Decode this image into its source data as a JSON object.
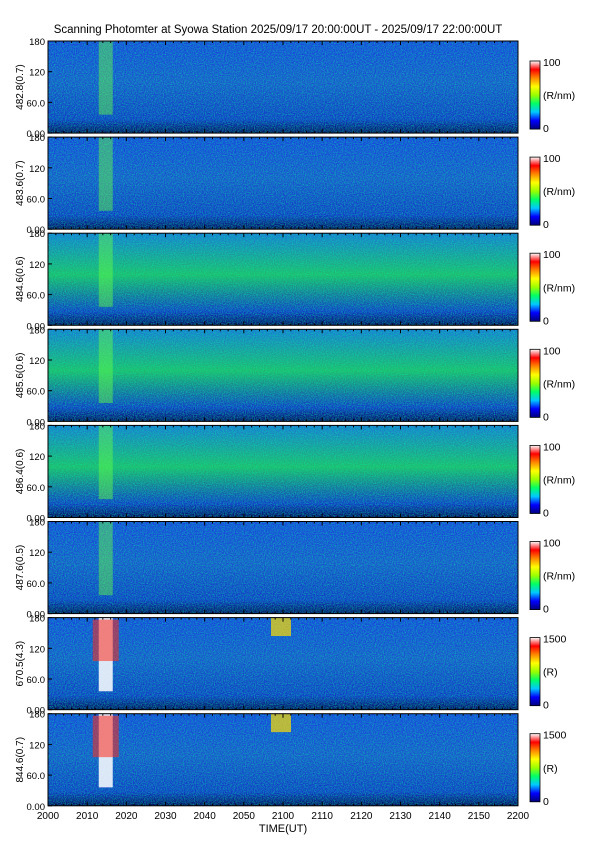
{
  "chart_data": {
    "type": "heatmap",
    "title": "Scanning Photomter at Syowa Station 2025/09/17 20:00:00UT - 2025/09/17 22:00:00UT",
    "xlabel": "TIME(UT)",
    "x_ticks": [
      "2000",
      "2010",
      "2020",
      "2030",
      "2040",
      "2050",
      "2100",
      "2110",
      "2120",
      "2130",
      "2140",
      "2150",
      "2200"
    ],
    "xlim": [
      "2000",
      "2200"
    ],
    "y_ticks": [
      "0.00",
      "60.0",
      "120",
      "180"
    ],
    "ylim": [
      0,
      180
    ],
    "colorscale": [
      "#00007a",
      "#0000ff",
      "#00c8ff",
      "#00ff66",
      "#9bff00",
      "#ffff00",
      "#ff8800",
      "#ff0000",
      "#ffffff"
    ],
    "panels": [
      {
        "ylabel": "482.8(0.7)",
        "cbar_max": "100",
        "cbar_min": "0",
        "cbar_unit": "(R/nm)",
        "level": 0.22
      },
      {
        "ylabel": "483.6(0.7)",
        "cbar_max": "100",
        "cbar_min": "0",
        "cbar_unit": "(R/nm)",
        "level": 0.18
      },
      {
        "ylabel": "484.6(0.6)",
        "cbar_max": "100",
        "cbar_min": "0",
        "cbar_unit": "(R/nm)",
        "level": 0.33
      },
      {
        "ylabel": "485.6(0.6)",
        "cbar_max": "100",
        "cbar_min": "0",
        "cbar_unit": "(R/nm)",
        "level": 0.36
      },
      {
        "ylabel": "486.4(0.6)",
        "cbar_max": "100",
        "cbar_min": "0",
        "cbar_unit": "(R/nm)",
        "level": 0.42
      },
      {
        "ylabel": "487.6(0.5)",
        "cbar_max": "100",
        "cbar_min": "0",
        "cbar_unit": "(R/nm)",
        "level": 0.24
      },
      {
        "ylabel": "670.5(4.3)",
        "cbar_max": "1500",
        "cbar_min": "0",
        "cbar_unit": "(R)",
        "level": 0.17
      },
      {
        "ylabel": "844.6(0.7)",
        "cbar_max": "1500",
        "cbar_min": "0",
        "cbar_unit": "(R)",
        "level": 0.25
      }
    ]
  }
}
